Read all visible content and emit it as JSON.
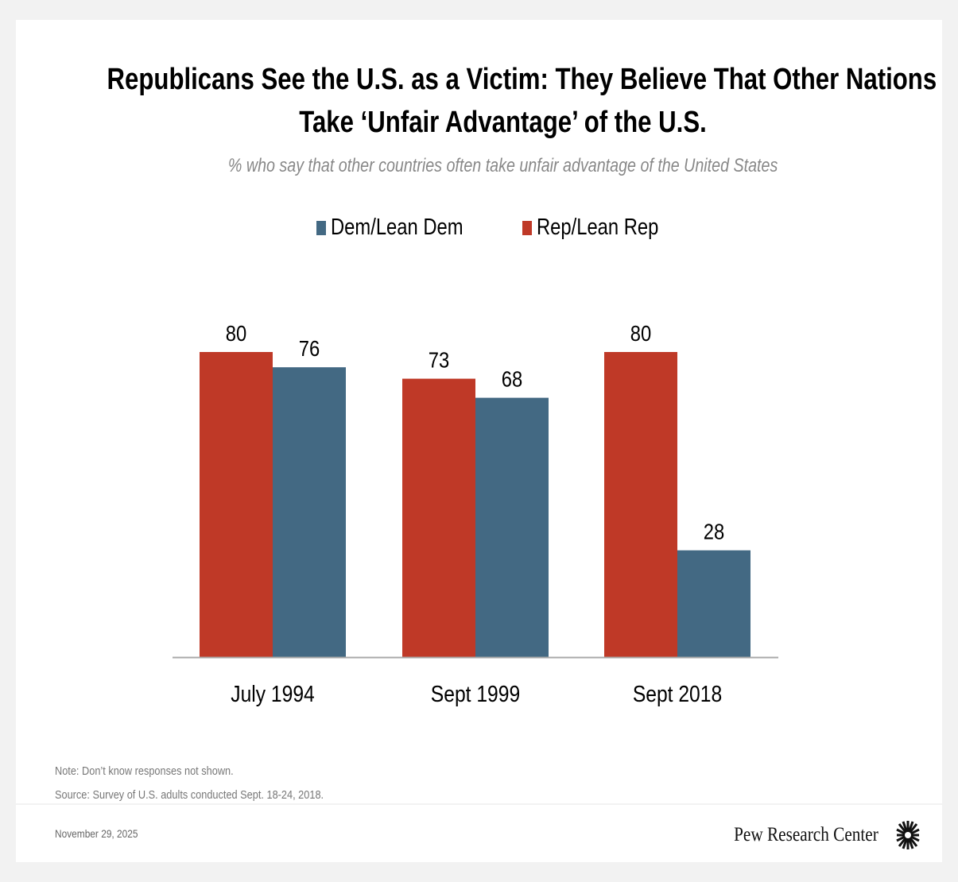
{
  "chart_data": {
    "type": "bar",
    "title": "Republicans See the U.S. as a Victim: They Believe That Other Nations Take ‘Unfair Advantage’ of the U.S.",
    "title_lines": [
      "Republicans See the U.S. as a Victim: They Believe That Other Nations",
      "Take ‘Unfair Advantage’ of the U.S."
    ],
    "subtitle": "% who say that other countries often take unfair advantage of the United States",
    "categories": [
      "July 1994",
      "Sept 1999",
      "Sept 2018"
    ],
    "series": [
      {
        "name": "Rep/Lean Rep",
        "color": "#bf3927",
        "values": [
          80,
          73,
          80
        ]
      },
      {
        "name": "Dem/Lean Dem",
        "color": "#436983",
        "values": [
          76,
          68,
          28
        ]
      }
    ],
    "legend": [
      "Dem/Lean Dem",
      "Rep/Lean Rep"
    ],
    "legend_position": "top",
    "ylim": [
      0,
      80
    ],
    "grid": false,
    "data_labels": true
  },
  "notes": {
    "note": "Note: Don’t know responses not shown.",
    "source": "Source: Survey of U.S. adults conducted Sept. 18-24, 2018."
  },
  "footer": {
    "date": "November 29, 2025",
    "brand": "Pew Research Center"
  }
}
